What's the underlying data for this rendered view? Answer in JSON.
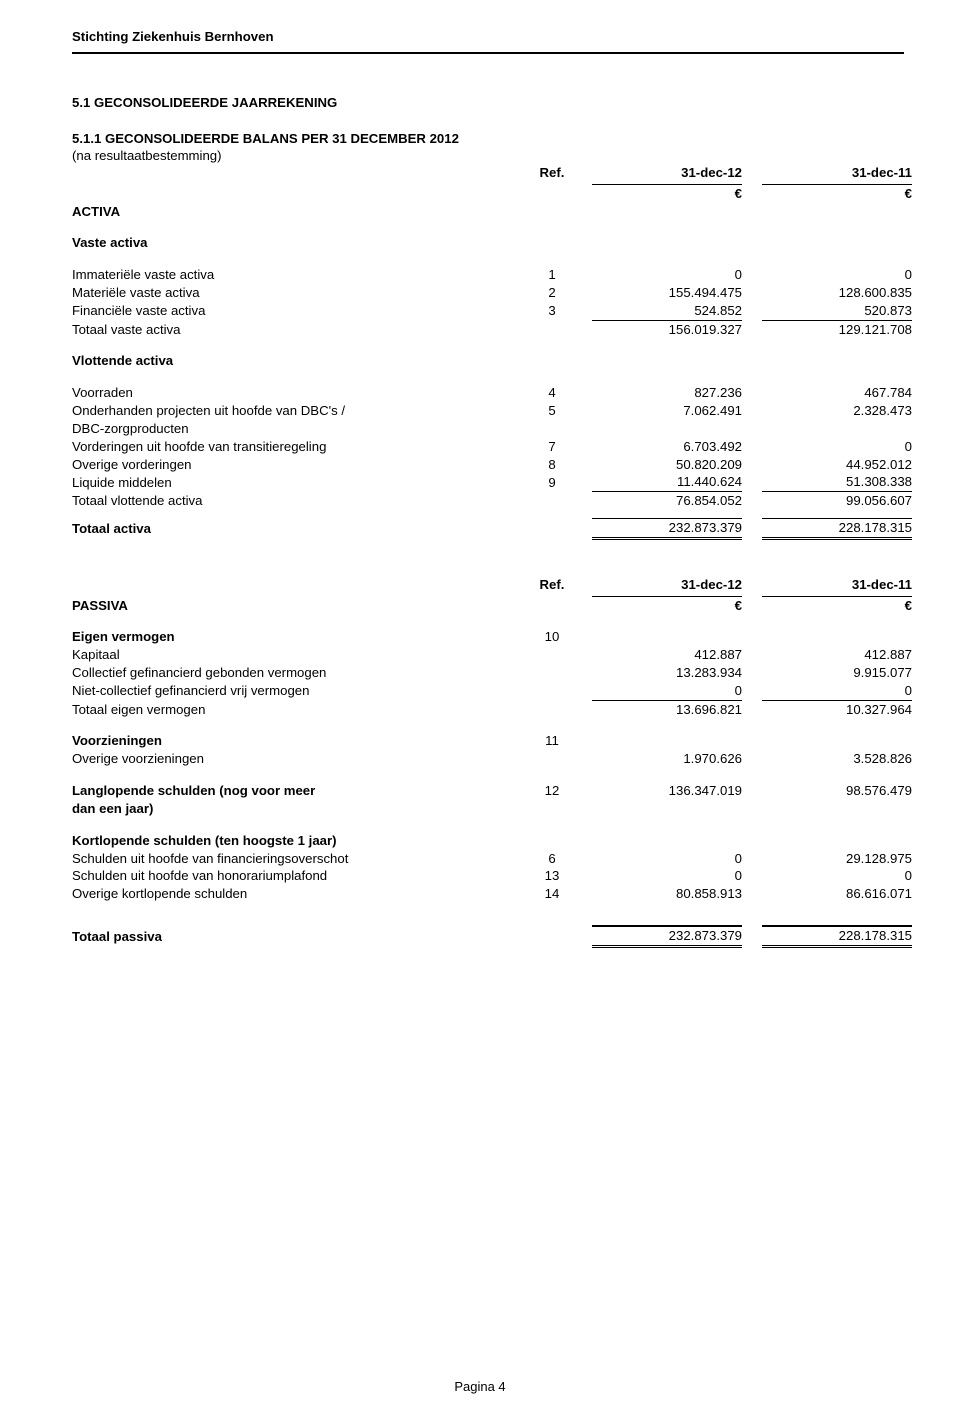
{
  "org": "Stichting Ziekenhuis Bernhoven",
  "section_title": "5.1 GECONSOLIDEERDE JAARREKENING",
  "balance_title_l1": "5.1.1 GECONSOLIDEERDE BALANS PER 31 DECEMBER 2012",
  "balance_title_l2": "(na resultaatbestemming)",
  "hdr": {
    "ref": "Ref.",
    "c1": "31-dec-12",
    "c2": "31-dec-11",
    "cur": "€"
  },
  "activa": {
    "label": "ACTIVA",
    "vaste_label": "Vaste activa",
    "vaste": [
      {
        "label": "Immateriële vaste activa",
        "ref": "1",
        "v1": "0",
        "v2": "0"
      },
      {
        "label": "Materiële vaste activa",
        "ref": "2",
        "v1": "155.494.475",
        "v2": "128.600.835"
      },
      {
        "label": "Financiële vaste activa",
        "ref": "3",
        "v1": "524.852",
        "v2": "520.873"
      }
    ],
    "vaste_totaal": {
      "label": "Totaal vaste activa",
      "v1": "156.019.327",
      "v2": "129.121.708"
    },
    "vlot_label": "Vlottende activa",
    "vlot": [
      {
        "label": "Voorraden",
        "ref": "4",
        "v1": "827.236",
        "v2": "467.784"
      },
      {
        "label": "Onderhanden projecten uit hoofde van DBC's /",
        "ref": "5",
        "v1": "7.062.491",
        "v2": "2.328.473"
      },
      {
        "label": " DBC-zorgproducten",
        "ref": "",
        "v1": "",
        "v2": ""
      },
      {
        "label": "Vorderingen uit hoofde van transitieregeling",
        "ref": "7",
        "v1": "6.703.492",
        "v2": "0"
      },
      {
        "label": "Overige vorderingen",
        "ref": "8",
        "v1": "50.820.209",
        "v2": "44.952.012"
      },
      {
        "label": "Liquide middelen",
        "ref": "9",
        "v1": "11.440.624",
        "v2": "51.308.338"
      }
    ],
    "vlot_totaal": {
      "label": "Totaal vlottende activa",
      "v1": "76.854.052",
      "v2": "99.056.607"
    },
    "totaal": {
      "label": "Totaal activa",
      "v1": "232.873.379",
      "v2": "228.178.315"
    }
  },
  "passiva": {
    "label": "PASSIVA",
    "ev_label": "Eigen vermogen",
    "ev_ref": "10",
    "ev": [
      {
        "label": "Kapitaal",
        "v1": "412.887",
        "v2": "412.887"
      },
      {
        "label": "Collectief gefinancierd gebonden vermogen",
        "v1": "13.283.934",
        "v2": "9.915.077"
      },
      {
        "label": "Niet-collectief gefinancierd vrij vermogen",
        "v1": "0",
        "v2": "0"
      }
    ],
    "ev_totaal": {
      "label": "Totaal eigen vermogen",
      "v1": "13.696.821",
      "v2": "10.327.964"
    },
    "voorz_label": "Voorzieningen",
    "voorz_ref": "11",
    "voorz": {
      "label": "Overige voorzieningen",
      "v1": "1.970.626",
      "v2": "3.528.826"
    },
    "lang_l1": "Langlopende schulden (nog voor meer",
    "lang_l2": " dan een jaar)",
    "lang_ref": "12",
    "lang": {
      "v1": "136.347.019",
      "v2": "98.576.479"
    },
    "kort_label": "Kortlopende schulden (ten hoogste 1 jaar)",
    "kort": [
      {
        "label": "Schulden uit hoofde van financieringsoverschot",
        "ref": "6",
        "v1": "0",
        "v2": "29.128.975"
      },
      {
        "label": "Schulden uit hoofde van honorariumplafond",
        "ref": "13",
        "v1": "0",
        "v2": "0"
      },
      {
        "label": "Overige kortlopende schulden",
        "ref": "14",
        "v1": "80.858.913",
        "v2": "86.616.071"
      }
    ],
    "totaal": {
      "label": "Totaal passiva",
      "v1": "232.873.379",
      "v2": "228.178.315"
    }
  },
  "page_label": "Pagina 4"
}
